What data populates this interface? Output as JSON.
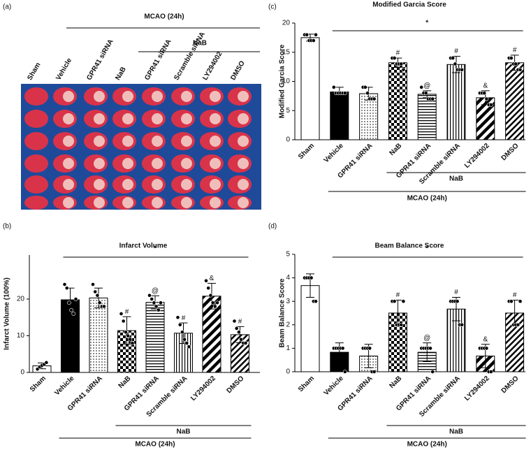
{
  "chart_data": [
    {
      "type": "image",
      "panel_label": "(a)",
      "group_label": "MCAO (24h)",
      "subgroup_label": "NaB",
      "categories": [
        "Sham",
        "Vehicle",
        "GPR41 siRNA",
        "NaB",
        "GPR41 siRNA",
        "Scramble siRNA",
        "LY294002",
        "DMSO"
      ]
    },
    {
      "type": "bar",
      "panel_label": "(b)",
      "title": "Infarct Volume",
      "y_label": "Infarct Volume (100%)",
      "categories": [
        "Sham",
        "Vehicle",
        "GPR41 siRNA",
        "NaB",
        "GPR41 siRNA",
        "Scramble siRNA",
        "LY294002",
        "DMSO"
      ],
      "values": [
        1.8,
        19.8,
        20.3,
        11.4,
        19.1,
        10.7,
        20.8,
        10.3
      ],
      "errors": [
        0.8,
        3.2,
        2.7,
        3.8,
        1.8,
        2.8,
        3.5,
        2.2
      ],
      "points": [
        [
          0.9,
          1.5,
          1.9,
          2.2,
          2.7
        ],
        [
          24,
          23,
          19,
          17,
          16,
          20
        ],
        [
          24,
          22,
          21,
          19,
          18,
          18
        ],
        [
          16,
          14,
          11,
          10,
          9,
          8
        ],
        [
          21,
          20,
          19,
          18,
          17,
          19
        ],
        [
          15,
          13,
          11,
          9,
          8,
          7
        ],
        [
          25,
          23,
          21,
          19,
          18,
          19
        ],
        [
          14,
          12,
          11,
          9,
          8,
          8
        ]
      ],
      "annotations": [
        null,
        null,
        null,
        "#",
        "@",
        "#",
        "&",
        "#"
      ],
      "significance": "*",
      "group_label": "MCAO (24h)",
      "subgroup_label": "NaB",
      "patterns": [
        "open",
        "solid",
        "dots",
        "checker",
        "hlines",
        "vlines",
        "diag-wide",
        "diag"
      ],
      "color": "#000000",
      "ylim": [
        0,
        32
      ],
      "yticks": [
        0,
        10,
        20
      ]
    },
    {
      "type": "bar",
      "panel_label": "(c)",
      "title": "Modified Garcia Score",
      "y_label": "Modified Garcia Score",
      "categories": [
        "Sham",
        "Vehicle",
        "GPR41 siRNA",
        "NaB",
        "GPR41 siRNA",
        "Scramble siRNA",
        "LY294002",
        "DMSO"
      ],
      "values": [
        17.5,
        8.2,
        7.9,
        13.2,
        7.8,
        12.9,
        7.2,
        13.2
      ],
      "errors": [
        0.6,
        0.8,
        1.1,
        0.8,
        0.6,
        1.4,
        1.2,
        1.3
      ],
      "points": [
        [
          18,
          18,
          17,
          17,
          17,
          18
        ],
        [
          9,
          8,
          8,
          8,
          8,
          8
        ],
        [
          9,
          9,
          8,
          7,
          7,
          7
        ],
        [
          14,
          14,
          13,
          13,
          13,
          12
        ],
        [
          9,
          8,
          8,
          7,
          7,
          7
        ],
        [
          14,
          14,
          13,
          12,
          12,
          12
        ],
        [
          8,
          8,
          8,
          7,
          6,
          6
        ],
        [
          14,
          14,
          13,
          13,
          12,
          12
        ]
      ],
      "annotations": [
        null,
        null,
        null,
        "#",
        "@",
        "#",
        "&",
        "#"
      ],
      "significance": "*",
      "group_label": "MCAO (24h)",
      "subgroup_label": "NaB",
      "patterns": [
        "open",
        "solid",
        "dots",
        "checker",
        "hlines",
        "vlines",
        "diag-wide",
        "diag"
      ],
      "color": "#000000",
      "ylim": [
        0,
        20
      ],
      "yticks": [
        0,
        5,
        10,
        15,
        20
      ]
    },
    {
      "type": "bar",
      "panel_label": "(d)",
      "title": "Beam Balance Score",
      "y_label": "Beam Balance Score",
      "categories": [
        "Sham",
        "Vehicle",
        "GPR41 siRNA",
        "NaB",
        "GPR41 siRNA",
        "Scramble siRNA",
        "LY294002",
        "DMSO"
      ],
      "values": [
        3.67,
        0.83,
        0.67,
        2.5,
        0.83,
        2.67,
        0.67,
        2.5
      ],
      "errors": [
        0.5,
        0.4,
        0.5,
        0.55,
        0.4,
        0.5,
        0.5,
        0.55
      ],
      "points": [
        [
          4,
          4,
          4,
          4,
          3,
          3
        ],
        [
          1,
          1,
          1,
          1,
          1,
          0
        ],
        [
          1,
          1,
          1,
          1,
          0,
          0
        ],
        [
          3,
          3,
          2,
          2,
          2,
          3
        ],
        [
          1,
          1,
          1,
          1,
          1,
          0
        ],
        [
          3,
          3,
          3,
          3,
          2,
          2
        ],
        [
          1,
          1,
          1,
          1,
          0,
          0
        ],
        [
          3,
          3,
          2,
          2,
          2,
          3
        ]
      ],
      "annotations": [
        null,
        null,
        null,
        "#",
        "@",
        "#",
        "&",
        "#"
      ],
      "significance": "*",
      "group_label": "MCAO (24h)",
      "subgroup_label": "NaB",
      "patterns": [
        "open",
        "solid",
        "dots",
        "checker",
        "hlines",
        "vlines",
        "diag-wide",
        "diag"
      ],
      "color": "#000000",
      "ylim": [
        0,
        5
      ],
      "yticks": [
        0,
        1,
        2,
        3,
        4,
        5
      ]
    }
  ]
}
